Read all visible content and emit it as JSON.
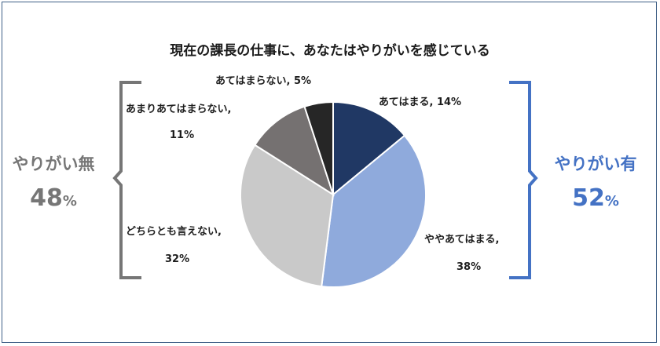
{
  "chart_data": {
    "type": "pie",
    "title": "現在の課長の仕事に、あなたはやりがいを感じている",
    "slices": [
      {
        "label": "あてはまる",
        "value": 14,
        "display": "あてはまる, 14%",
        "color": "#203864"
      },
      {
        "label": "ややあてはまる",
        "value": 38,
        "display_lines": [
          "ややあてはまる,",
          "38%"
        ],
        "color": "#8faadc"
      },
      {
        "label": "どちらとも言えない",
        "value": 32,
        "display_lines": [
          "どちらとも言えない,",
          "32%"
        ],
        "color": "#c9c9c9"
      },
      {
        "label": "あまりあてはまらない",
        "value": 11,
        "display_lines": [
          "あまりあてはまらない,",
          "11%"
        ],
        "color": "#757171"
      },
      {
        "label": "あてはまらない",
        "value": 5,
        "display": "あてはまらない, 5%",
        "color": "#262626"
      }
    ],
    "groups": {
      "left": {
        "label": "やりがい無",
        "value": "48",
        "unit": "%",
        "color": "#767676"
      },
      "right": {
        "label": "やりがい有",
        "value": "52",
        "unit": "%",
        "color": "#4472c4"
      }
    }
  }
}
